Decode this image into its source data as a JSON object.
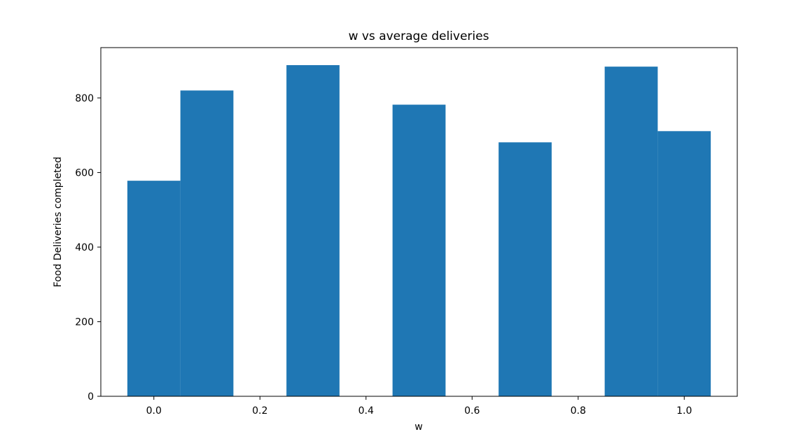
{
  "chart_data": {
    "type": "bar",
    "title": "w vs average deliveries",
    "xlabel": "w",
    "ylabel": "Food Deliveries completed",
    "xlim": [
      -0.1,
      1.1
    ],
    "ylim": [
      0,
      935
    ],
    "xticks": [
      0.0,
      0.2,
      0.4,
      0.6,
      0.8,
      1.0
    ],
    "xtick_labels": [
      "0.0",
      "0.2",
      "0.4",
      "0.6",
      "0.8",
      "1.0"
    ],
    "yticks": [
      0,
      200,
      400,
      600,
      800
    ],
    "ytick_labels": [
      "0",
      "200",
      "400",
      "600",
      "800"
    ],
    "bar_color": "#1f77b4",
    "grid": false,
    "bars": [
      {
        "x": 0.0,
        "width": 0.1,
        "value": 578
      },
      {
        "x": 0.1,
        "width": 0.1,
        "value": 820
      },
      {
        "x": 0.3,
        "width": 0.1,
        "value": 888
      },
      {
        "x": 0.5,
        "width": 0.1,
        "value": 782
      },
      {
        "x": 0.7,
        "width": 0.1,
        "value": 681
      },
      {
        "x": 0.9,
        "width": 0.1,
        "value": 884
      },
      {
        "x": 1.0,
        "width": 0.1,
        "value": 711
      }
    ]
  }
}
